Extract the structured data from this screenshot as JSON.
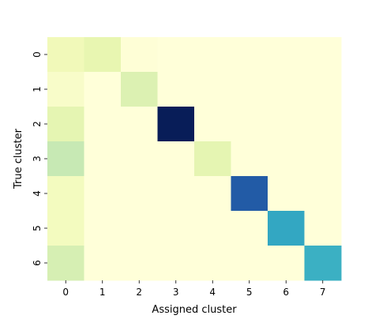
{
  "chart_data": {
    "type": "heatmap",
    "title": "",
    "xlabel": "Assigned cluster",
    "ylabel": "True cluster",
    "x_categories": [
      "0",
      "1",
      "2",
      "3",
      "4",
      "5",
      "6",
      "7"
    ],
    "y_categories": [
      "0",
      "1",
      "2",
      "3",
      "4",
      "5",
      "6"
    ],
    "colormap": "YlGnBu",
    "colorbar": false,
    "values": [
      [
        0.1,
        0.14,
        0.01,
        0.0,
        0.0,
        0.0,
        0.0,
        0.0
      ],
      [
        0.05,
        0.0,
        0.18,
        0.0,
        0.0,
        0.0,
        0.0,
        0.0
      ],
      [
        0.15,
        0.0,
        0.0,
        1.0,
        0.0,
        0.0,
        0.0,
        0.0
      ],
      [
        0.25,
        0.0,
        0.0,
        0.0,
        0.15,
        0.0,
        0.0,
        0.0
      ],
      [
        0.08,
        0.0,
        0.0,
        0.0,
        0.0,
        0.76,
        0.0,
        0.0
      ],
      [
        0.08,
        0.0,
        0.0,
        0.0,
        0.0,
        0.0,
        0.55,
        0.0
      ],
      [
        0.2,
        0.0,
        0.0,
        0.0,
        0.0,
        0.0,
        0.0,
        0.52
      ]
    ]
  }
}
